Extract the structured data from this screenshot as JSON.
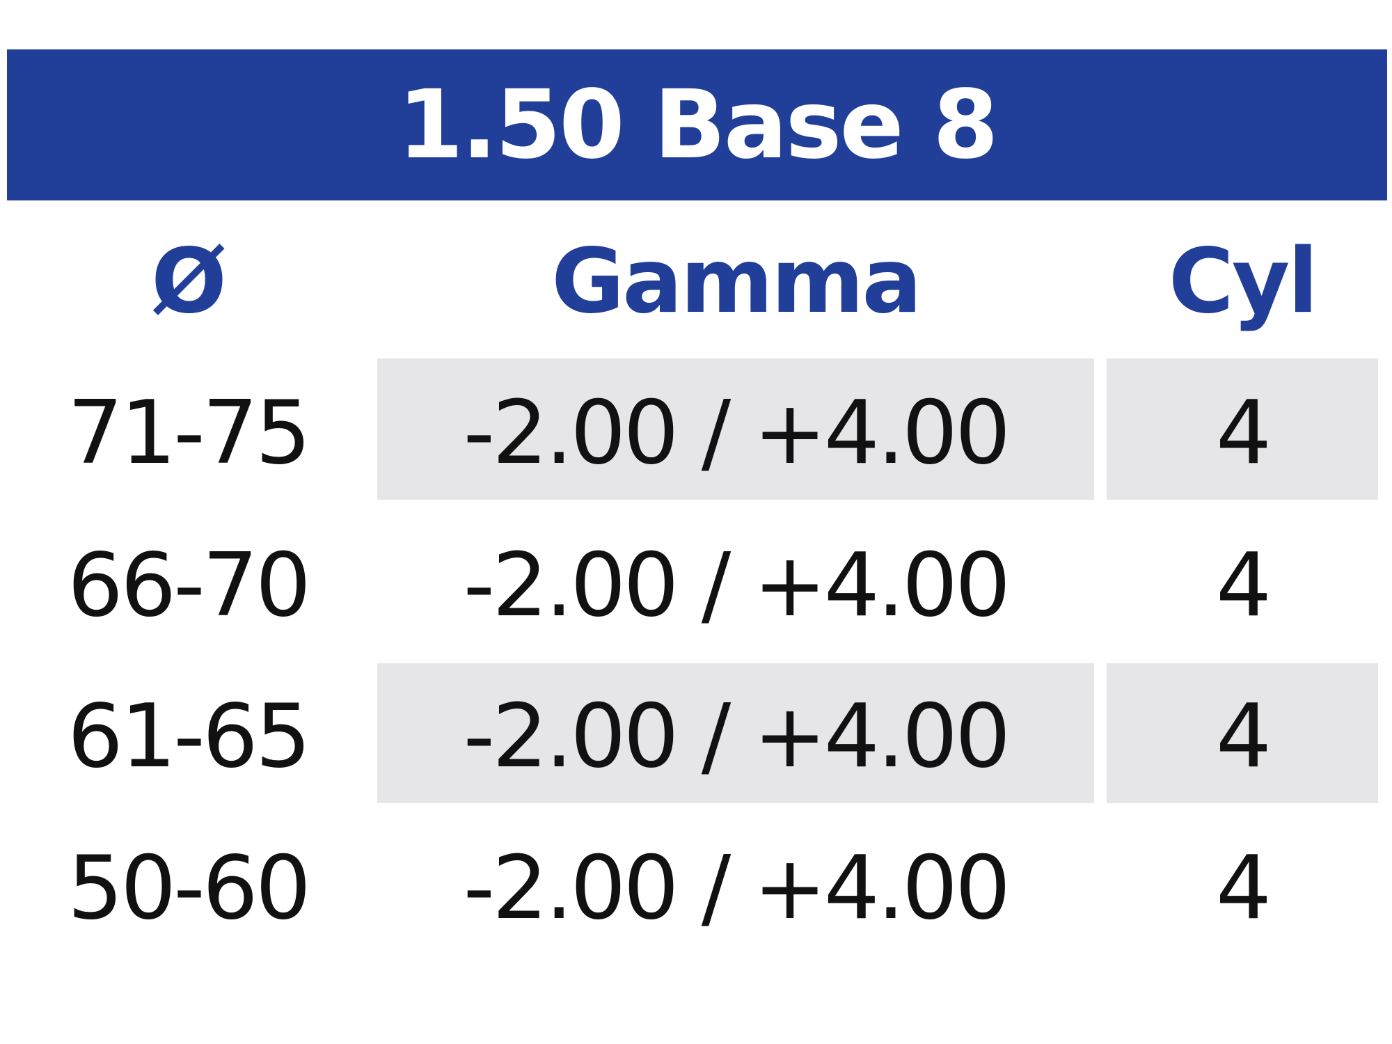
{
  "title": "1.50 Base 8",
  "headers": {
    "diameter": "Ø",
    "gamma": "Gamma",
    "cyl": "Cyl"
  },
  "rows": [
    {
      "diameter": "71-75",
      "gamma": "-2.00 / +4.00",
      "cyl": "4",
      "shaded": true
    },
    {
      "diameter": "66-70",
      "gamma": "-2.00 / +4.00",
      "cyl": "4",
      "shaded": false
    },
    {
      "diameter": "61-65",
      "gamma": "-2.00 / +4.00",
      "cyl": "4",
      "shaded": true
    },
    {
      "diameter": "50-60",
      "gamma": "-2.00 / +4.00",
      "cyl": "4",
      "shaded": false
    }
  ],
  "colors": {
    "brand_blue": "#213f98",
    "row_shade": "#e6e6e8",
    "text": "#111111"
  }
}
